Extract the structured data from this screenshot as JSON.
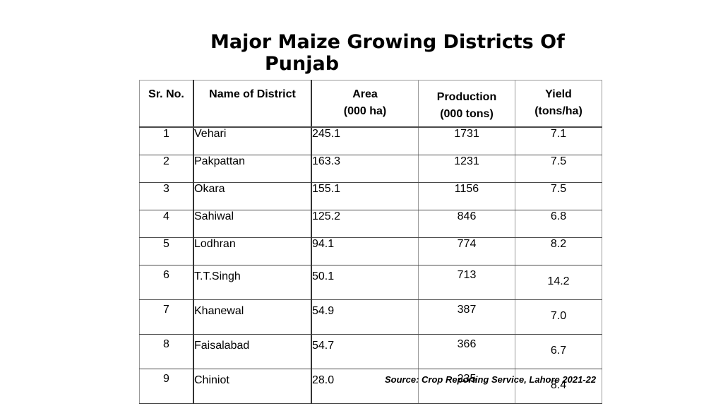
{
  "title": {
    "line1": "Major Maize Growing Districts Of",
    "line2": "Punjab"
  },
  "table": {
    "headers": {
      "sr": "Sr. No.",
      "name": "Name of District",
      "area_1": "Area",
      "area_2": "(000 ha)",
      "prod_1": "Production",
      "prod_2": "(000 tons)",
      "yield_1": "Yield",
      "yield_2": "(tons/ha)"
    },
    "rows": [
      {
        "sr": "1",
        "name": "Vehari",
        "area": "245.1",
        "production": "1731",
        "yield": "7.1"
      },
      {
        "sr": "2",
        "name": "Pakpattan",
        "area": "163.3",
        "production": "1231",
        "yield": "7.5"
      },
      {
        "sr": "3",
        "name": "Okara",
        "area": "155.1",
        "production": "1156",
        "yield": "7.5"
      },
      {
        "sr": "4",
        "name": "Sahiwal",
        "area": "125.2",
        "production": "846",
        "yield": "6.8"
      },
      {
        "sr": "5",
        "name": "Lodhran",
        "area": "94.1",
        "production": "774",
        "yield": "8.2"
      },
      {
        "sr": "6",
        "name": "T.T.Singh",
        "area": "50.1",
        "production": "713",
        "yield": "14.2"
      },
      {
        "sr": "7",
        "name": "Khanewal",
        "area": "54.9",
        "production": "387",
        "yield": "7.0"
      },
      {
        "sr": "8",
        "name": "Faisalabad",
        "area": "54.7",
        "production": "366",
        "yield": "6.7"
      },
      {
        "sr": "9",
        "name": "Chiniot",
        "area": "28.0",
        "production": "235",
        "yield": "8.4"
      }
    ]
  },
  "source": "Source: Crop Reporting Service, Lahore 2021-22"
}
